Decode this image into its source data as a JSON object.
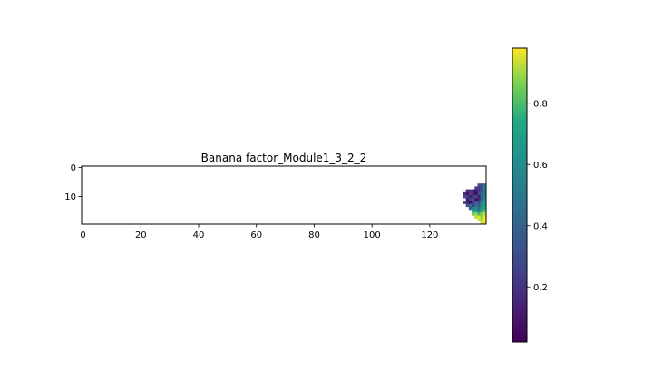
{
  "chart_data": {
    "type": "heatmap",
    "title": "Banana factor_Module1_3_2_2",
    "xlabel": "",
    "ylabel": "",
    "xlim": [
      -0.5,
      139.5
    ],
    "ylim": [
      19.5,
      -0.5
    ],
    "x_ticks": [
      0,
      20,
      40,
      60,
      80,
      100,
      120
    ],
    "y_ticks": [
      0,
      10
    ],
    "grid": false,
    "colormap": "viridis",
    "colorbar": {
      "range": [
        0.02,
        0.98
      ],
      "ticks": [
        0.2,
        0.4,
        0.6,
        0.8
      ],
      "tick_labels": [
        "0.2",
        "0.4",
        "0.6",
        "0.8"
      ]
    },
    "cells": [
      [
        137,
        6,
        0.3
      ],
      [
        138,
        6,
        0.3
      ],
      [
        139,
        6,
        0.48
      ],
      [
        136,
        7,
        0.25
      ],
      [
        137,
        7,
        0.22
      ],
      [
        138,
        7,
        0.28
      ],
      [
        139,
        7,
        0.58
      ],
      [
        133,
        8,
        0.15
      ],
      [
        134,
        8,
        0.2
      ],
      [
        135,
        8,
        0.12
      ],
      [
        136,
        8,
        0.1
      ],
      [
        137,
        8,
        0.22
      ],
      [
        138,
        8,
        0.3
      ],
      [
        139,
        8,
        0.5
      ],
      [
        132,
        9,
        0.18
      ],
      [
        133,
        9,
        0.08
      ],
      [
        134,
        9,
        0.25
      ],
      [
        135,
        9,
        0.15
      ],
      [
        136,
        9,
        0.05
      ],
      [
        137,
        9,
        0.3
      ],
      [
        138,
        9,
        0.4
      ],
      [
        139,
        9,
        0.55
      ],
      [
        132,
        10,
        0.3
      ],
      [
        133,
        10,
        0.25
      ],
      [
        134,
        10,
        0.12
      ],
      [
        135,
        10,
        0.2
      ],
      [
        136,
        10,
        0.35
      ],
      [
        137,
        10,
        0.1
      ],
      [
        138,
        10,
        0.45
      ],
      [
        139,
        10,
        0.5
      ],
      [
        133,
        11,
        0.1
      ],
      [
        134,
        11,
        0.28
      ],
      [
        135,
        11,
        0.3
      ],
      [
        136,
        11,
        0.05
      ],
      [
        137,
        11,
        0.15
      ],
      [
        138,
        11,
        0.38
      ],
      [
        139,
        11,
        0.6
      ],
      [
        132,
        12,
        0.35
      ],
      [
        133,
        12,
        0.15
      ],
      [
        134,
        12,
        0.05
      ],
      [
        135,
        12,
        0.25
      ],
      [
        136,
        12,
        0.4
      ],
      [
        137,
        12,
        0.3
      ],
      [
        138,
        12,
        0.55
      ],
      [
        139,
        12,
        0.65
      ],
      [
        133,
        13,
        0.3
      ],
      [
        134,
        13,
        0.45
      ],
      [
        135,
        13,
        0.2
      ],
      [
        136,
        13,
        0.5
      ],
      [
        137,
        13,
        0.35
      ],
      [
        138,
        13,
        0.6
      ],
      [
        139,
        13,
        0.7
      ],
      [
        134,
        14,
        0.4
      ],
      [
        135,
        14,
        0.55
      ],
      [
        136,
        14,
        0.62
      ],
      [
        137,
        14,
        0.45
      ],
      [
        138,
        14,
        0.65
      ],
      [
        139,
        14,
        0.75
      ],
      [
        135,
        15,
        0.72
      ],
      [
        136,
        15,
        0.68
      ],
      [
        137,
        15,
        0.55
      ],
      [
        138,
        15,
        0.75
      ],
      [
        139,
        15,
        0.82
      ],
      [
        135,
        16,
        0.85
      ],
      [
        136,
        16,
        0.9
      ],
      [
        137,
        16,
        0.78
      ],
      [
        138,
        16,
        0.88
      ],
      [
        139,
        16,
        0.92
      ],
      [
        136,
        17,
        0.92
      ],
      [
        137,
        17,
        0.95
      ],
      [
        138,
        17,
        0.85
      ],
      [
        139,
        17,
        0.97
      ],
      [
        137,
        18,
        0.95
      ],
      [
        138,
        18,
        0.9
      ],
      [
        139,
        18,
        0.98
      ],
      [
        138,
        19,
        0.93
      ],
      [
        139,
        19,
        0.96
      ]
    ]
  }
}
